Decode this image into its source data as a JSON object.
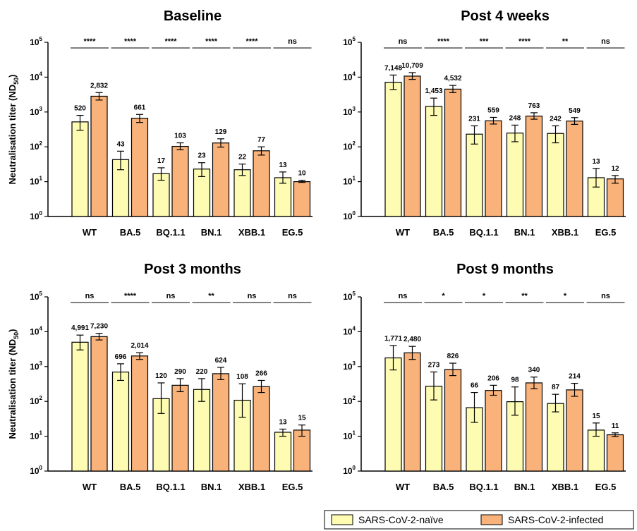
{
  "legend": {
    "naive_label": "SARS-CoV-2-naïve",
    "infected_label": "SARS-CoV-2-infected"
  },
  "colors": {
    "naive": "#fdfcb2",
    "infected": "#f9b27a",
    "stroke": "#000000"
  },
  "chart_data": [
    {
      "type": "bar",
      "title": "Baseline",
      "ylabel": "Neutralisation titer (ND50)",
      "yscale": "log",
      "ylim": [
        1,
        100000
      ],
      "categories": [
        "WT",
        "BA.5",
        "BQ.1.1",
        "BN.1",
        "XBB.1",
        "EG.5"
      ],
      "series": [
        {
          "name": "SARS-CoV-2-naïve",
          "values": [
            520,
            43,
            17,
            23,
            22,
            13
          ],
          "labels": [
            "520",
            "43",
            "17",
            "23",
            "22",
            "13"
          ],
          "err_low": [
            300,
            22,
            11,
            14,
            15,
            9
          ],
          "err_high": [
            800,
            75,
            25,
            35,
            32,
            19
          ]
        },
        {
          "name": "SARS-CoV-2-infected",
          "values": [
            2832,
            661,
            103,
            129,
            77,
            10
          ],
          "labels": [
            "2,832",
            "661",
            "103",
            "129",
            "77",
            "10"
          ],
          "err_low": [
            2200,
            500,
            82,
            98,
            58,
            9.5
          ],
          "err_high": [
            3600,
            850,
            130,
            170,
            100,
            11
          ]
        }
      ],
      "significance": [
        "****",
        "****",
        "****",
        "****",
        "****",
        "ns"
      ]
    },
    {
      "type": "bar",
      "title": "Post 4 weeks",
      "ylabel": "",
      "yscale": "log",
      "ylim": [
        1,
        100000
      ],
      "categories": [
        "WT",
        "BA.5",
        "BQ.1.1",
        "BN.1",
        "XBB.1",
        "EG.5"
      ],
      "series": [
        {
          "name": "SARS-CoV-2-naïve",
          "values": [
            7148,
            1453,
            231,
            248,
            242,
            13
          ],
          "labels": [
            "7,148",
            "1,453",
            "231",
            "248",
            "242",
            "13"
          ],
          "err_low": [
            4400,
            800,
            120,
            140,
            130,
            7
          ],
          "err_high": [
            11500,
            2500,
            400,
            420,
            400,
            24
          ]
        },
        {
          "name": "SARS-CoV-2-infected",
          "values": [
            10709,
            4532,
            559,
            763,
            549,
            12
          ],
          "labels": [
            "10,709",
            "4,532",
            "559",
            "763",
            "549",
            "12"
          ],
          "err_low": [
            8600,
            3600,
            450,
            620,
            440,
            9
          ],
          "err_high": [
            13500,
            5800,
            700,
            950,
            690,
            15
          ]
        }
      ],
      "significance": [
        "ns",
        "****",
        "***",
        "****",
        "**",
        "ns"
      ]
    },
    {
      "type": "bar",
      "title": "Post 3 months",
      "ylabel": "Neutralisation titer (ND50)",
      "yscale": "log",
      "ylim": [
        1,
        100000
      ],
      "categories": [
        "WT",
        "BA.5",
        "BQ.1.1",
        "BN.1",
        "XBB.1",
        "EG.5"
      ],
      "series": [
        {
          "name": "SARS-CoV-2-naïve",
          "values": [
            4991,
            696,
            120,
            220,
            108,
            13
          ],
          "labels": [
            "4,991",
            "696",
            "120",
            "220",
            "108",
            "13"
          ],
          "err_low": [
            3000,
            400,
            45,
            100,
            35,
            10
          ],
          "err_high": [
            8000,
            1200,
            340,
            450,
            320,
            16
          ]
        },
        {
          "name": "SARS-CoV-2-infected",
          "values": [
            7230,
            2014,
            290,
            624,
            266,
            15
          ],
          "labels": [
            "7,230",
            "2,014",
            "290",
            "624",
            "266",
            "15"
          ],
          "err_low": [
            5800,
            1600,
            190,
            420,
            180,
            10
          ],
          "err_high": [
            9000,
            2500,
            450,
            950,
            400,
            21
          ]
        }
      ],
      "significance": [
        "ns",
        "****",
        "ns",
        "**",
        "ns",
        "ns"
      ]
    },
    {
      "type": "bar",
      "title": "Post 9 months",
      "ylabel": "",
      "yscale": "log",
      "ylim": [
        1,
        100000
      ],
      "categories": [
        "WT",
        "BA.5",
        "BQ.1.1",
        "BN.1",
        "XBB.1",
        "EG.5"
      ],
      "series": [
        {
          "name": "SARS-CoV-2-naïve",
          "values": [
            1771,
            273,
            66,
            98,
            87,
            15
          ],
          "labels": [
            "1,771",
            "273",
            "66",
            "98",
            "87",
            "15"
          ],
          "err_low": [
            800,
            110,
            25,
            40,
            50,
            10
          ],
          "err_high": [
            4000,
            700,
            180,
            260,
            160,
            24
          ]
        },
        {
          "name": "SARS-CoV-2-infected",
          "values": [
            2480,
            826,
            206,
            340,
            214,
            11
          ],
          "labels": [
            "2,480",
            "826",
            "206",
            "340",
            "214",
            "11"
          ],
          "err_low": [
            1600,
            550,
            150,
            230,
            140,
            9.7
          ],
          "err_high": [
            3800,
            1250,
            290,
            500,
            330,
            12.5
          ]
        }
      ],
      "significance": [
        "ns",
        "*",
        "*",
        "**",
        "*",
        "ns"
      ]
    }
  ]
}
